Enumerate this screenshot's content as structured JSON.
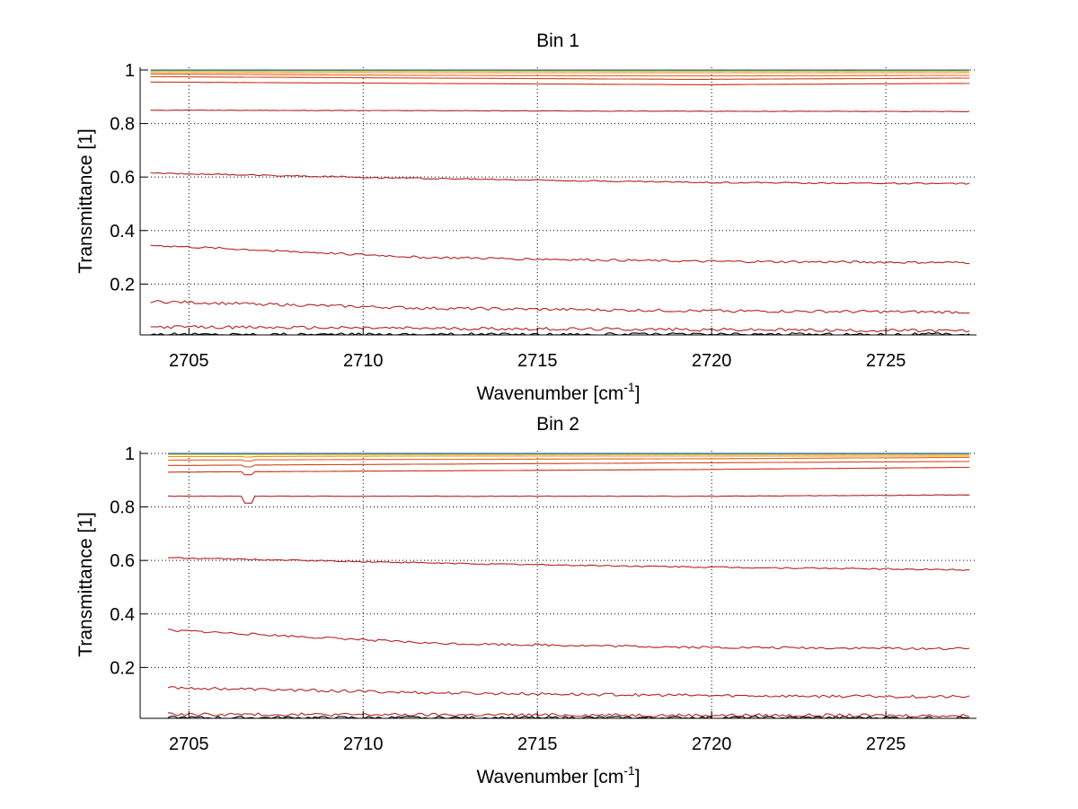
{
  "chart_data": [
    {
      "type": "line",
      "title": "Bin 1",
      "xlabel": "Wavenumber [cm",
      "xlabel_sup": "-1",
      "xlabel_end": "]",
      "ylabel": "Transmittance [1]",
      "xlim": [
        2703.6,
        2727.6
      ],
      "ylim": [
        0.01,
        1.01
      ],
      "xticks": [
        2705,
        2710,
        2715,
        2720,
        2725
      ],
      "yticks": [
        0.2,
        0.4,
        0.6,
        0.8,
        1
      ],
      "ytick_labels": [
        "0.2",
        "0.4",
        "0.6",
        "0.8",
        "1"
      ],
      "grid": true,
      "x_range": [
        2703.9,
        2727.4
      ],
      "series": [
        {
          "color": "#000000",
          "values": [
            0.012,
            0.012
          ]
        },
        {
          "color": "#b22222",
          "values": [
            0.04,
            0.025
          ]
        },
        {
          "color": "#b22222",
          "values": [
            0.135,
            0.11,
            0.1,
            0.095
          ]
        },
        {
          "color": "#b22222",
          "values": [
            0.345,
            0.3,
            0.285,
            0.28
          ]
        },
        {
          "color": "#b22222",
          "values": [
            0.615,
            0.595,
            0.58,
            0.575
          ]
        },
        {
          "color": "#b22222",
          "values": [
            0.85,
            0.848,
            0.846,
            0.845
          ]
        },
        {
          "color": "#c8321e",
          "values": [
            0.955,
            0.95,
            0.945,
            0.95
          ]
        },
        {
          "color": "#d2461e",
          "values": [
            0.975,
            0.97,
            0.965,
            0.97
          ]
        },
        {
          "color": "#e66420",
          "values": [
            0.985,
            0.98,
            0.978,
            0.98
          ]
        },
        {
          "color": "#f08c20",
          "values": [
            0.99,
            0.99,
            0.99,
            0.99
          ]
        },
        {
          "color": "#f5c020",
          "values": [
            0.995,
            0.995,
            0.995,
            0.995
          ]
        },
        {
          "color": "#c8e650",
          "values": [
            0.997,
            0.997,
            0.997,
            0.997
          ]
        },
        {
          "color": "#50d2c8",
          "values": [
            0.999,
            0.999,
            0.999,
            0.999
          ]
        },
        {
          "color": "#1e3c8c",
          "values": [
            1.0,
            1.0,
            1.0,
            1.0
          ]
        }
      ]
    },
    {
      "type": "line",
      "title": "Bin 2",
      "xlabel": "Wavenumber [cm",
      "xlabel_sup": "-1",
      "xlabel_end": "]",
      "ylabel": "Transmittance [1]",
      "xlim": [
        2703.6,
        2727.6
      ],
      "ylim": [
        0.01,
        1.01
      ],
      "xticks": [
        2705,
        2710,
        2715,
        2720,
        2725
      ],
      "yticks": [
        0.2,
        0.4,
        0.6,
        0.8,
        1
      ],
      "ytick_labels": [
        "0.2",
        "0.4",
        "0.6",
        "0.8",
        "1"
      ],
      "grid": true,
      "x_range": [
        2704.4,
        2727.4
      ],
      "series": [
        {
          "color": "#000000",
          "values": [
            0.012,
            0.012
          ]
        },
        {
          "color": "#b22222",
          "values": [
            0.025,
            0.02
          ]
        },
        {
          "color": "#b22222",
          "values": [
            0.125,
            0.105,
            0.095,
            0.09
          ]
        },
        {
          "color": "#b22222",
          "values": [
            0.34,
            0.29,
            0.275,
            0.27
          ]
        },
        {
          "color": "#b22222",
          "values": [
            0.61,
            0.59,
            0.575,
            0.565
          ]
        },
        {
          "color": "#b22222",
          "values": [
            0.84,
            0.84,
            0.84,
            0.845
          ]
        },
        {
          "color": "#c8321e",
          "values": [
            0.93,
            0.935,
            0.94,
            0.948
          ]
        },
        {
          "color": "#d2461e",
          "values": [
            0.955,
            0.96,
            0.965,
            0.97
          ]
        },
        {
          "color": "#e66420",
          "values": [
            0.975,
            0.978,
            0.98,
            0.985
          ]
        },
        {
          "color": "#f08c20",
          "values": [
            0.988,
            0.99,
            0.99,
            0.99
          ]
        },
        {
          "color": "#f5c020",
          "values": [
            0.995,
            0.995,
            0.995,
            0.995
          ]
        },
        {
          "color": "#c8e650",
          "values": [
            0.997,
            0.997,
            0.997,
            0.997
          ]
        },
        {
          "color": "#50d2c8",
          "values": [
            0.999,
            0.999,
            0.999,
            0.999
          ]
        },
        {
          "color": "#1e3c8c",
          "values": [
            1.0,
            1.0,
            1.0,
            1.0
          ]
        }
      ]
    }
  ]
}
